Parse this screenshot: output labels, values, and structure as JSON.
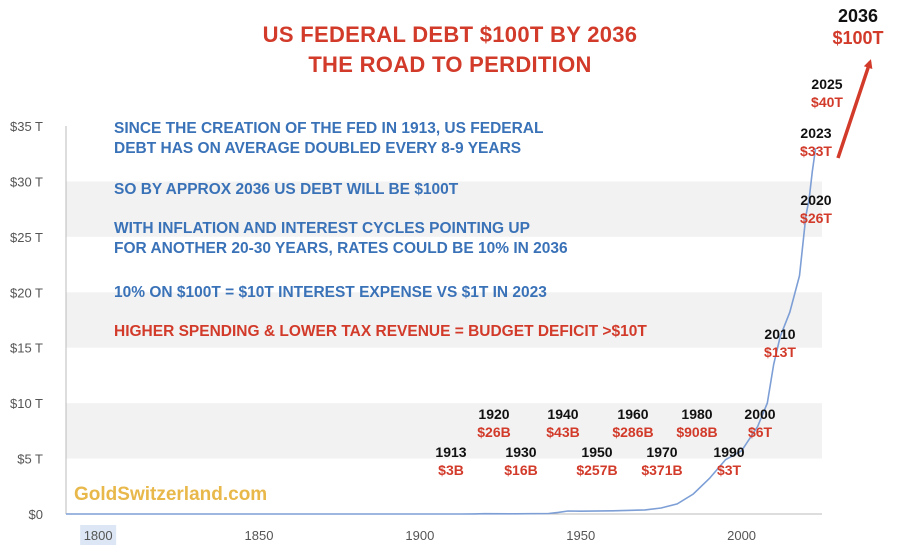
{
  "title_line1": "US FEDERAL DEBT $100T BY 2036",
  "title_line2": "THE ROAD TO PERDITION",
  "notes": {
    "n1": "SINCE THE CREATION OF THE FED IN 1913, US FEDERAL\nDEBT HAS ON AVERAGE DOUBLED EVERY 8-9 YEARS",
    "n2": "SO BY APPROX 2036 US DEBT WILL BE $100T",
    "n3": "WITH INFLATION AND INTEREST CYCLES POINTING UP\nFOR ANOTHER 20-30 YEARS, RATES COULD BE 10% IN 2036",
    "n4": "10% ON $100T = $10T INTEREST EXPENSE VS $1T IN 2023",
    "n5": "HIGHER SPENDING & LOWER TAX REVENUE = BUDGET DEFICIT >$10T"
  },
  "brand": "GoldSwitzerland.com",
  "colors": {
    "title": "#d23a2a",
    "note_blue": "#3a72b8",
    "line": "#7d9fd6",
    "arrow": "#d23a2a",
    "brand": "#e8b84a",
    "band": "#f2f2f2"
  },
  "annotations": [
    {
      "year": "1913",
      "value": "$3B"
    },
    {
      "year": "1920",
      "value": "$26B"
    },
    {
      "year": "1930",
      "value": "$16B"
    },
    {
      "year": "1940",
      "value": "$43B"
    },
    {
      "year": "1950",
      "value": "$257B"
    },
    {
      "year": "1960",
      "value": "$286B"
    },
    {
      "year": "1970",
      "value": "$371B"
    },
    {
      "year": "1980",
      "value": "$908B"
    },
    {
      "year": "1990",
      "value": "$3T"
    },
    {
      "year": "2000",
      "value": "$6T"
    },
    {
      "year": "2010",
      "value": "$13T"
    },
    {
      "year": "2020",
      "value": "$26T"
    },
    {
      "year": "2023",
      "value": "$33T"
    },
    {
      "year": "2025",
      "value": "$40T"
    },
    {
      "year": "2036",
      "value": "$100T"
    }
  ],
  "chart_data": {
    "type": "line",
    "title": "US FEDERAL DEBT $100T BY 2036",
    "subtitle": "THE ROAD TO PERDITION",
    "xlabel": "",
    "ylabel": "",
    "xlim": [
      1790,
      2025
    ],
    "ylim": [
      0,
      35
    ],
    "x_ticks": [
      1800,
      1850,
      1900,
      1950,
      2000
    ],
    "x_tick_labels": [
      "1800",
      "1850",
      "1900",
      "1950",
      "2000"
    ],
    "y_ticks": [
      0,
      5,
      10,
      15,
      20,
      25,
      30,
      35
    ],
    "y_tick_labels": [
      "$0",
      "$5 T",
      "$10 T",
      "$15 T",
      "$20 T",
      "$25 T",
      "$30 T",
      "$35 T"
    ],
    "grid": "alternating horizontal bands",
    "legend": "none",
    "series": [
      {
        "x": [
          1790,
          1800,
          1850,
          1860,
          1866,
          1900,
          1913,
          1917,
          1920,
          1930,
          1940,
          1943,
          1946,
          1950,
          1960,
          1970,
          1975,
          1980,
          1985,
          1990,
          1995,
          2000,
          2005,
          2008,
          2010,
          2012,
          2015,
          2018,
          2020,
          2021,
          2022,
          2023
        ],
        "y": [
          0.0001,
          0.0001,
          0.0001,
          0.0001,
          0.003,
          0.002,
          0.003,
          0.006,
          0.026,
          0.016,
          0.043,
          0.14,
          0.27,
          0.257,
          0.286,
          0.371,
          0.54,
          0.908,
          1.8,
          3.2,
          4.9,
          5.7,
          7.9,
          10.0,
          13.5,
          16.0,
          18.2,
          21.5,
          26.9,
          28.4,
          30.9,
          33.0
        ]
      }
    ],
    "arrow": {
      "from": [
        2023,
        33
      ],
      "to": [
        2036,
        100
      ],
      "label": "$100T"
    }
  }
}
